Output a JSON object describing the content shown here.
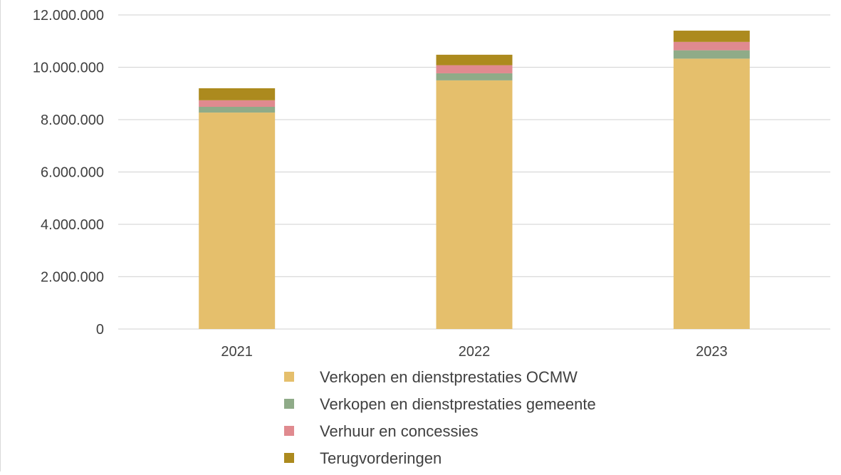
{
  "chart_data": {
    "type": "bar",
    "stacked": true,
    "categories": [
      "2021",
      "2022",
      "2023"
    ],
    "series": [
      {
        "name": "Verkopen en dienstprestaties OCMW",
        "color": "#E5BF6C",
        "values": [
          8270000,
          9500000,
          10330000
        ]
      },
      {
        "name": "Verkopen en dienstprestaties gemeente",
        "color": "#8FAB88",
        "values": [
          220000,
          270000,
          320000
        ]
      },
      {
        "name": "Verhuur en concessies",
        "color": "#E08A8F",
        "values": [
          250000,
          310000,
          320000
        ]
      },
      {
        "name": "Terugvorderingen",
        "color": "#AC8A1E",
        "values": [
          460000,
          400000,
          430000
        ]
      }
    ],
    "ylim": [
      0,
      12000000
    ],
    "y_ticks": [
      0,
      2000000,
      4000000,
      6000000,
      8000000,
      10000000,
      12000000
    ],
    "y_tick_labels": [
      "0",
      "2.000.000",
      "4.000.000",
      "6.000.000",
      "8.000.000",
      "10.000.000",
      "12.000.000"
    ],
    "grid": true,
    "legend_position": "bottom",
    "title": "",
    "xlabel": "",
    "ylabel": ""
  }
}
